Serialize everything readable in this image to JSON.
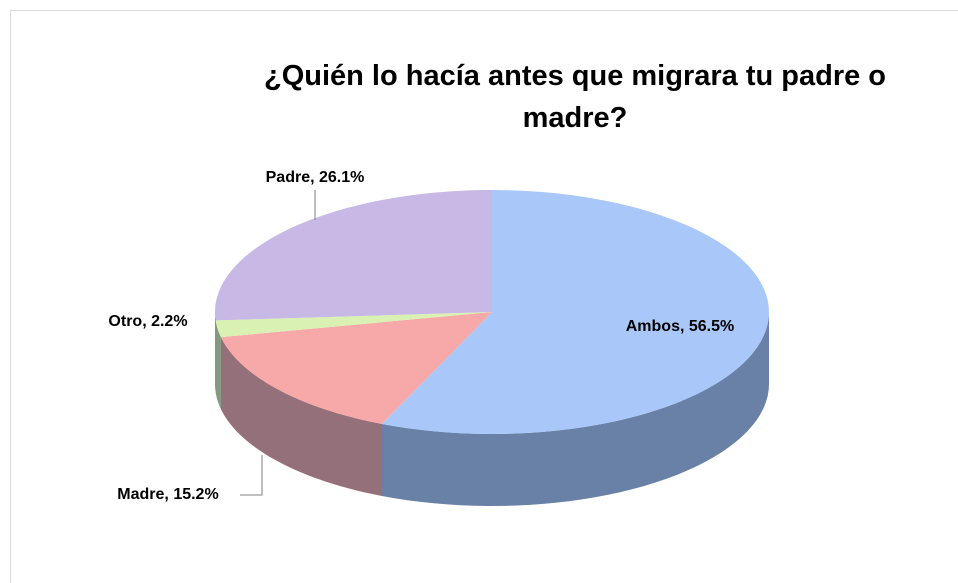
{
  "chart_data": {
    "type": "pie",
    "title": [
      "¿Quién lo hacía antes que migrara tu padre o",
      "madre?"
    ],
    "values": [
      56.5,
      15.2,
      2.2,
      26.1
    ],
    "value_labels": [
      "Ambos, 56.5%",
      "Madre, 15.2%",
      "Otro, 2.2%",
      "Padre, 26.1%"
    ],
    "colors": [
      "#a9c8f9",
      "#f7a9a9",
      "#d9f2b3",
      "#c7b8e6"
    ]
  }
}
